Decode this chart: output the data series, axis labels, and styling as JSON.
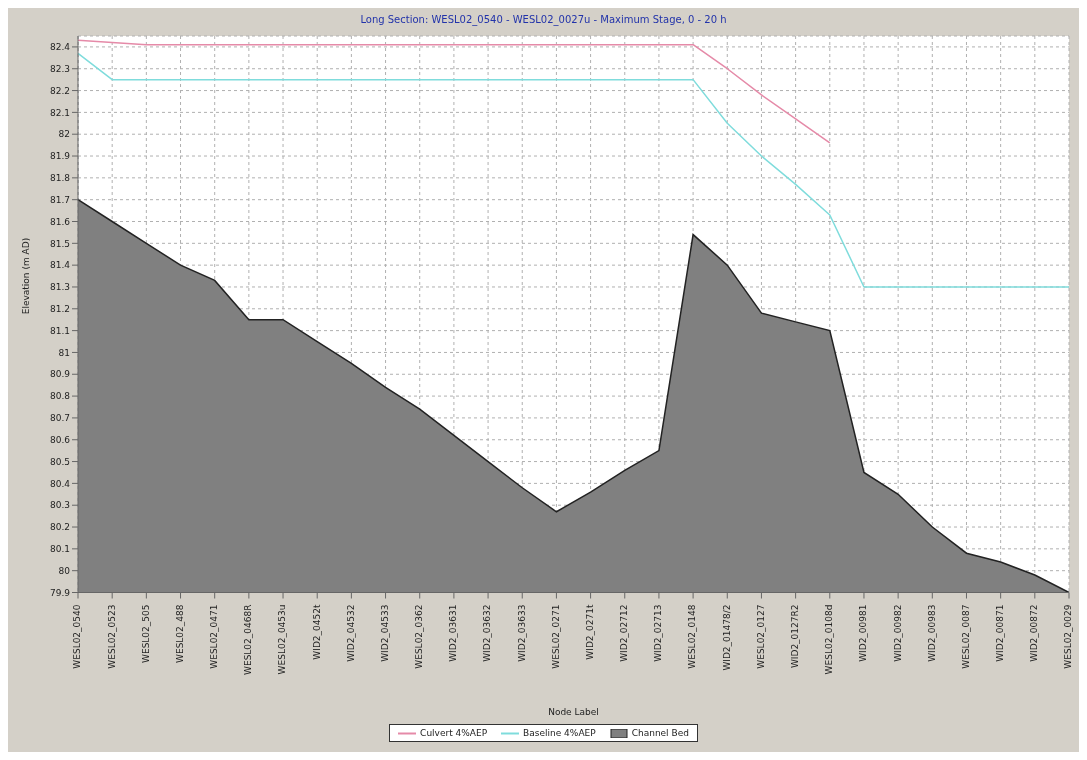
{
  "chart_data": {
    "type": "line",
    "title": "Long Section: WESL02_0540 - WESL02_0027u - Maximum Stage, 0 - 20 h",
    "xlabel": "Node Label",
    "ylabel": "Elevation (m AD)",
    "categories": [
      "WESL02_0540",
      "WESL02_0523",
      "WESL02_505",
      "WESL02_488",
      "WESL02_0471",
      "WESL02_0468R",
      "WESL02_0453u",
      "WID2_0452t",
      "WID2_04532",
      "WID2_04533",
      "WESL02_0362",
      "WID2_03631",
      "WID2_03632",
      "WID2_03633",
      "WESL02_0271",
      "WID2_0271t",
      "WID2_02712",
      "WID2_02713",
      "WESL02_0148",
      "WID2_01478/2",
      "WESL02_0127",
      "WID2_0127R2",
      "WESL02_0108d",
      "WID2_00981",
      "WID2_00982",
      "WID2_00983",
      "WESL02_0087",
      "WID2_00871",
      "WID2_00872",
      "WESL02_0029"
    ],
    "series": [
      {
        "name": "Culvert 4%AEP",
        "color": "#e58aa8",
        "values": [
          82.43,
          82.42,
          82.41,
          82.41,
          82.41,
          82.41,
          82.41,
          82.41,
          82.41,
          82.41,
          82.41,
          82.41,
          82.41,
          82.41,
          82.41,
          82.41,
          82.41,
          82.41,
          82.41,
          82.3,
          82.18,
          82.07,
          81.96,
          null,
          null,
          null,
          null,
          null,
          null,
          null
        ]
      },
      {
        "name": "Baseline 4%AEP",
        "color": "#7fdcdc",
        "values": [
          82.37,
          82.25,
          82.25,
          82.25,
          82.25,
          82.25,
          82.25,
          82.25,
          82.25,
          82.25,
          82.25,
          82.25,
          82.25,
          82.25,
          82.25,
          82.25,
          82.25,
          82.25,
          82.25,
          82.05,
          81.9,
          81.77,
          81.63,
          81.3,
          81.3,
          81.3,
          81.3,
          81.3,
          81.3,
          81.3
        ]
      },
      {
        "name": "Channel Bed",
        "type": "area",
        "color": "#808080",
        "values": [
          81.7,
          81.6,
          81.5,
          81.4,
          81.33,
          81.15,
          81.15,
          81.05,
          80.95,
          80.84,
          80.74,
          80.62,
          80.5,
          80.38,
          80.27,
          80.36,
          80.46,
          80.55,
          81.54,
          81.4,
          81.18,
          81.14,
          81.1,
          80.45,
          80.35,
          80.2,
          80.08,
          80.04,
          79.98,
          79.9
        ]
      }
    ],
    "ylim": [
      79.9,
      82.45
    ],
    "yticks": [
      79.9,
      80,
      80.1,
      80.2,
      80.3,
      80.4,
      80.5,
      80.6,
      80.7,
      80.8,
      80.9,
      81,
      81.1,
      81.2,
      81.3,
      81.4,
      81.5,
      81.6,
      81.7,
      81.8,
      81.9,
      82,
      82.1,
      82.2,
      82.3,
      82.4
    ],
    "grid": true,
    "legend": "bottom",
    "marker": "none",
    "line_style": "solid"
  }
}
